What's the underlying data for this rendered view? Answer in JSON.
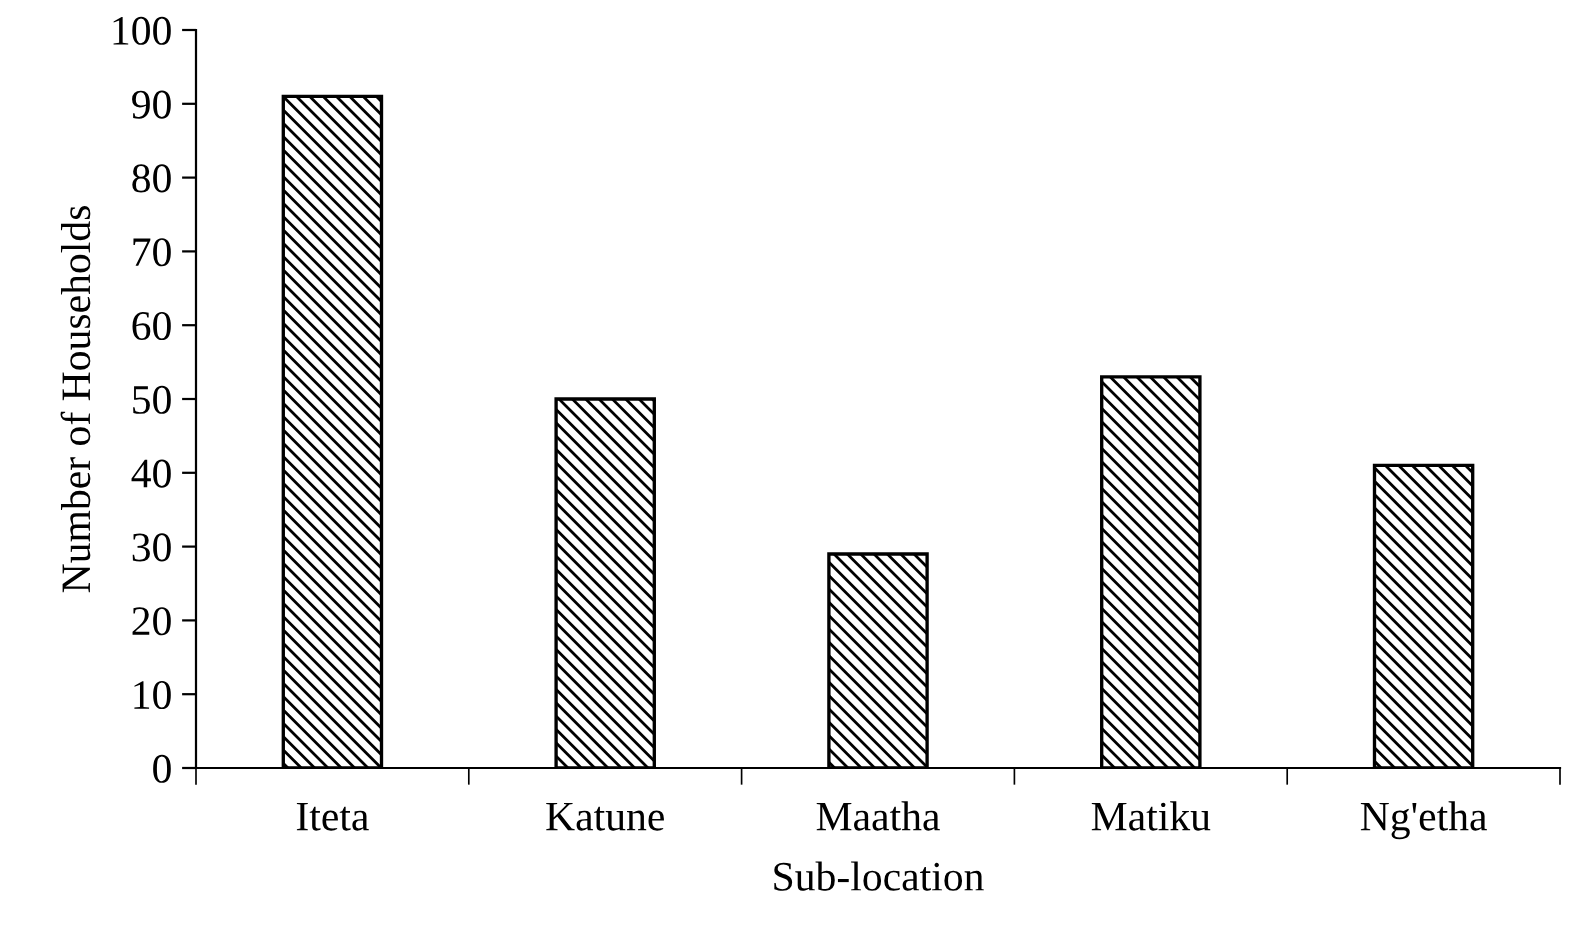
{
  "chart_data": {
    "type": "bar",
    "xlabel": "Sub-location",
    "ylabel": "Number of Households",
    "categories": [
      "Iteta",
      "Katune",
      "Maatha",
      "Matiku",
      "Ng'etha"
    ],
    "values": [
      91,
      50,
      29,
      53,
      41
    ],
    "color": "#000000",
    "ylim": [
      0,
      100
    ],
    "yticks": [
      0,
      10,
      20,
      30,
      40,
      50,
      60,
      70,
      80,
      90,
      100
    ],
    "grid": false,
    "legend": false
  }
}
